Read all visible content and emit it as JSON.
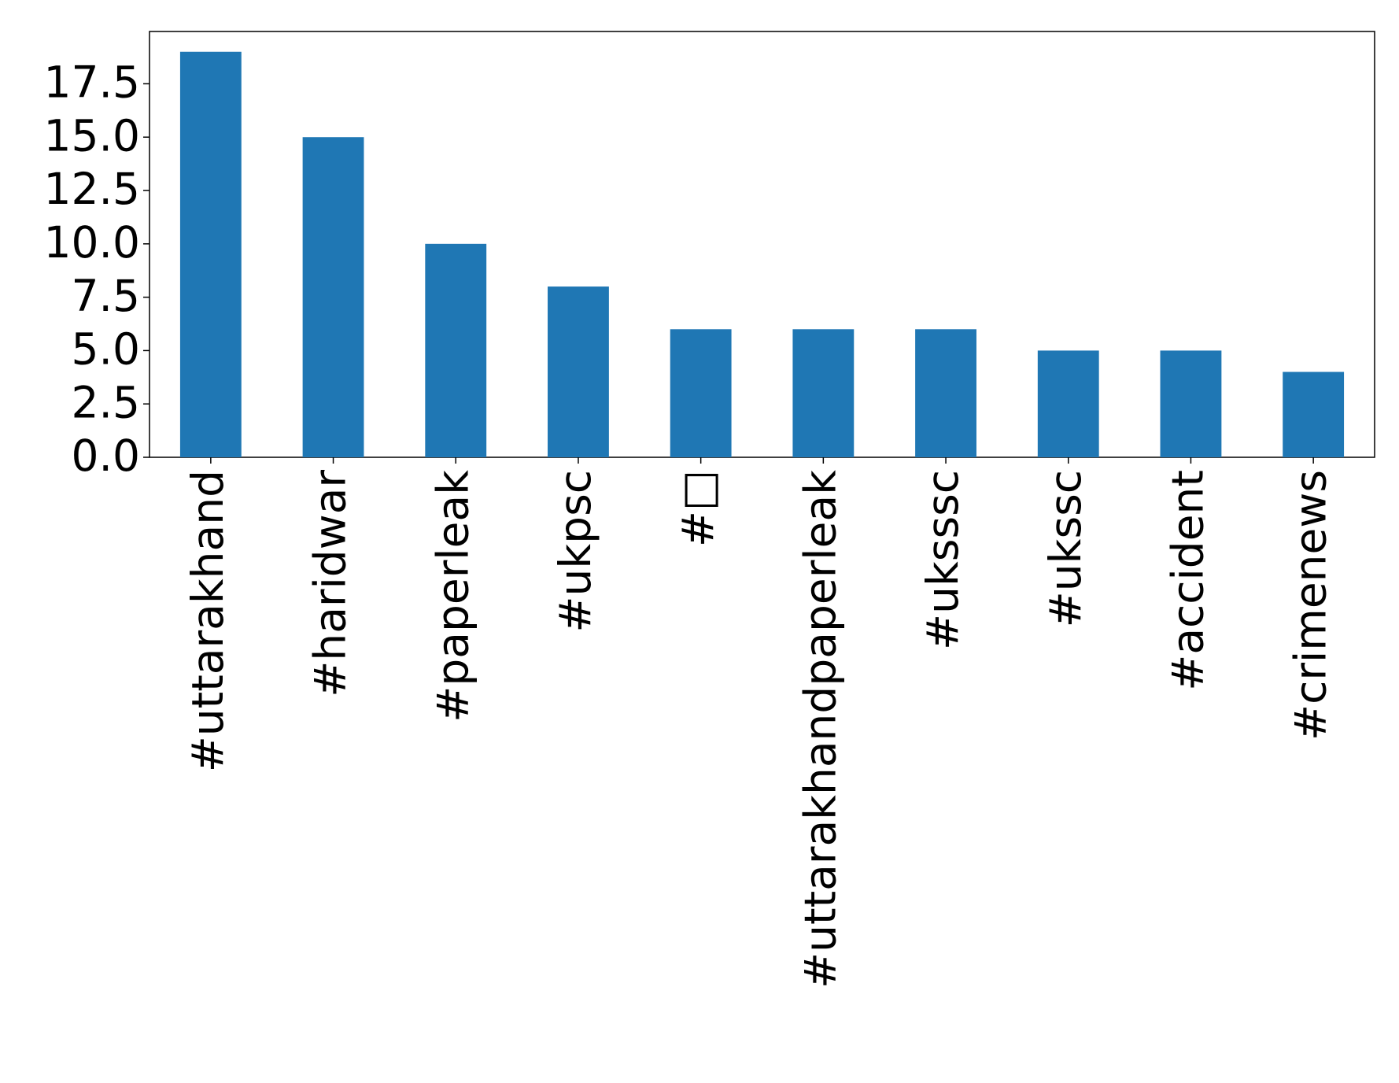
{
  "chart_data": {
    "type": "bar",
    "categories": [
      "#uttarakhand",
      "#haridwar",
      "#paperleak",
      "#ukpsc",
      "#□",
      "#uttarakhandpaperleak",
      "#uksssc",
      "#ukssc",
      "#accident",
      "#crimenews"
    ],
    "values": [
      19,
      15,
      10,
      8,
      6,
      6,
      6,
      5,
      5,
      4
    ],
    "color": "#1f77b4",
    "ylim": [
      0,
      19.95
    ],
    "yticks": [
      {
        "value": 0,
        "label": "0.0"
      },
      {
        "value": 2.5,
        "label": "2.5"
      },
      {
        "value": 5,
        "label": "5.0"
      },
      {
        "value": 7.5,
        "label": "7.5"
      },
      {
        "value": 10,
        "label": "10.0"
      },
      {
        "value": 12.5,
        "label": "12.5"
      },
      {
        "value": 15,
        "label": "15.0"
      },
      {
        "value": 17.5,
        "label": "17.5"
      }
    ],
    "grid": false
  }
}
